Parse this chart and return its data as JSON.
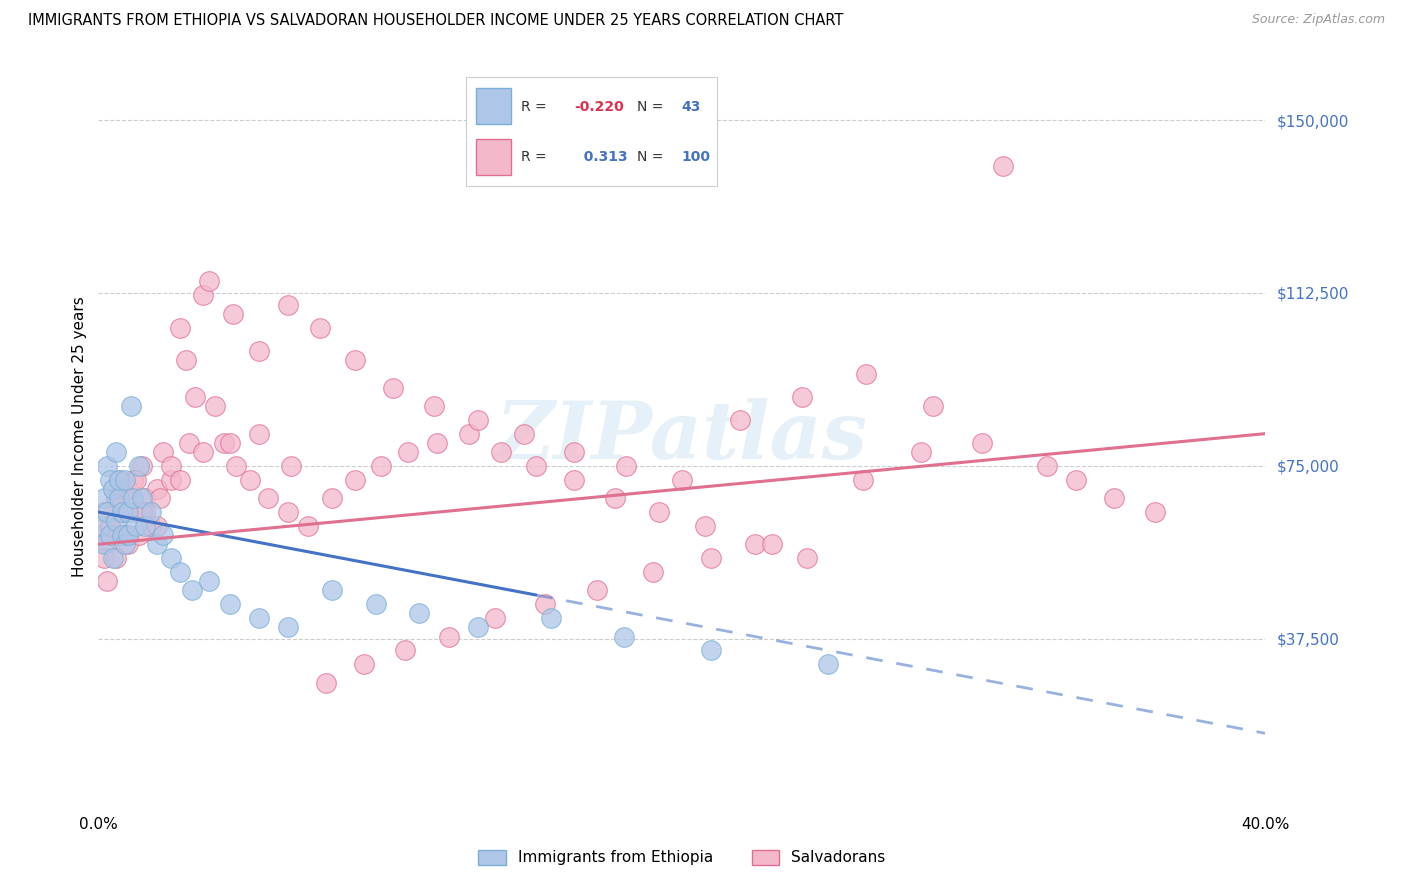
{
  "title": "IMMIGRANTS FROM ETHIOPIA VS SALVADORAN HOUSEHOLDER INCOME UNDER 25 YEARS CORRELATION CHART",
  "source": "Source: ZipAtlas.com",
  "ylabel": "Householder Income Under 25 years",
  "xlim": [
    0.0,
    0.4
  ],
  "ylim": [
    0,
    162500
  ],
  "yticks": [
    37500,
    75000,
    112500,
    150000
  ],
  "ytick_labels": [
    "$37,500",
    "$75,000",
    "$112,500",
    "$150,000"
  ],
  "background_color": "#ffffff",
  "grid_color": "#c8c8c8",
  "watermark": "ZIPatlas",
  "ethiopia_color": "#aec6e8",
  "ethiopia_edge": "#7bafd4",
  "ethiopia_line_color": "#4472c4",
  "salvador_color": "#f4b8cb",
  "salvador_edge": "#e07090",
  "salvador_line_color": "#e07090",
  "ytick_color": "#4472c4",
  "legend_ethiopia_label": "Immigrants from Ethiopia",
  "legend_salvador_label": "Salvadorans",
  "ethiopia_x": [
    0.001,
    0.002,
    0.002,
    0.003,
    0.003,
    0.004,
    0.004,
    0.005,
    0.005,
    0.006,
    0.006,
    0.007,
    0.007,
    0.008,
    0.008,
    0.009,
    0.009,
    0.01,
    0.01,
    0.011,
    0.012,
    0.013,
    0.014,
    0.015,
    0.016,
    0.018,
    0.02,
    0.022,
    0.025,
    0.028,
    0.032,
    0.038,
    0.045,
    0.055,
    0.065,
    0.08,
    0.095,
    0.11,
    0.13,
    0.155,
    0.18,
    0.21,
    0.25
  ],
  "ethiopia_y": [
    62000,
    68000,
    58000,
    75000,
    65000,
    72000,
    60000,
    70000,
    55000,
    78000,
    63000,
    68000,
    72000,
    60000,
    65000,
    58000,
    72000,
    65000,
    60000,
    88000,
    68000,
    62000,
    75000,
    68000,
    62000,
    65000,
    58000,
    60000,
    55000,
    52000,
    48000,
    50000,
    45000,
    42000,
    40000,
    48000,
    45000,
    43000,
    40000,
    42000,
    38000,
    35000,
    32000
  ],
  "salvador_x": [
    0.001,
    0.002,
    0.003,
    0.004,
    0.005,
    0.006,
    0.007,
    0.008,
    0.009,
    0.01,
    0.011,
    0.012,
    0.013,
    0.014,
    0.015,
    0.016,
    0.018,
    0.02,
    0.022,
    0.025,
    0.028,
    0.03,
    0.033,
    0.036,
    0.04,
    0.043,
    0.047,
    0.052,
    0.058,
    0.065,
    0.072,
    0.08,
    0.088,
    0.097,
    0.106,
    0.116,
    0.127,
    0.138,
    0.15,
    0.163,
    0.177,
    0.192,
    0.208,
    0.225,
    0.243,
    0.262,
    0.282,
    0.303,
    0.325,
    0.348,
    0.002,
    0.004,
    0.006,
    0.008,
    0.01,
    0.013,
    0.016,
    0.02,
    0.025,
    0.031,
    0.038,
    0.046,
    0.055,
    0.065,
    0.076,
    0.088,
    0.101,
    0.115,
    0.13,
    0.146,
    0.163,
    0.181,
    0.2,
    0.22,
    0.241,
    0.263,
    0.286,
    0.31,
    0.335,
    0.362,
    0.003,
    0.006,
    0.01,
    0.015,
    0.021,
    0.028,
    0.036,
    0.045,
    0.055,
    0.066,
    0.078,
    0.091,
    0.105,
    0.12,
    0.136,
    0.153,
    0.171,
    0.19,
    0.21,
    0.231
  ],
  "salvador_y": [
    60000,
    65000,
    58000,
    62000,
    70000,
    68000,
    72000,
    65000,
    60000,
    58000,
    68000,
    72000,
    65000,
    60000,
    75000,
    68000,
    62000,
    70000,
    78000,
    72000,
    105000,
    98000,
    90000,
    112000,
    88000,
    80000,
    75000,
    72000,
    68000,
    65000,
    62000,
    68000,
    72000,
    75000,
    78000,
    80000,
    82000,
    78000,
    75000,
    72000,
    68000,
    65000,
    62000,
    58000,
    55000,
    72000,
    78000,
    80000,
    75000,
    68000,
    55000,
    62000,
    68000,
    65000,
    70000,
    72000,
    65000,
    62000,
    75000,
    80000,
    115000,
    108000,
    100000,
    110000,
    105000,
    98000,
    92000,
    88000,
    85000,
    82000,
    78000,
    75000,
    72000,
    85000,
    90000,
    95000,
    88000,
    140000,
    72000,
    65000,
    50000,
    55000,
    60000,
    65000,
    68000,
    72000,
    78000,
    80000,
    82000,
    75000,
    28000,
    32000,
    35000,
    38000,
    42000,
    45000,
    48000,
    52000,
    55000,
    58000
  ]
}
